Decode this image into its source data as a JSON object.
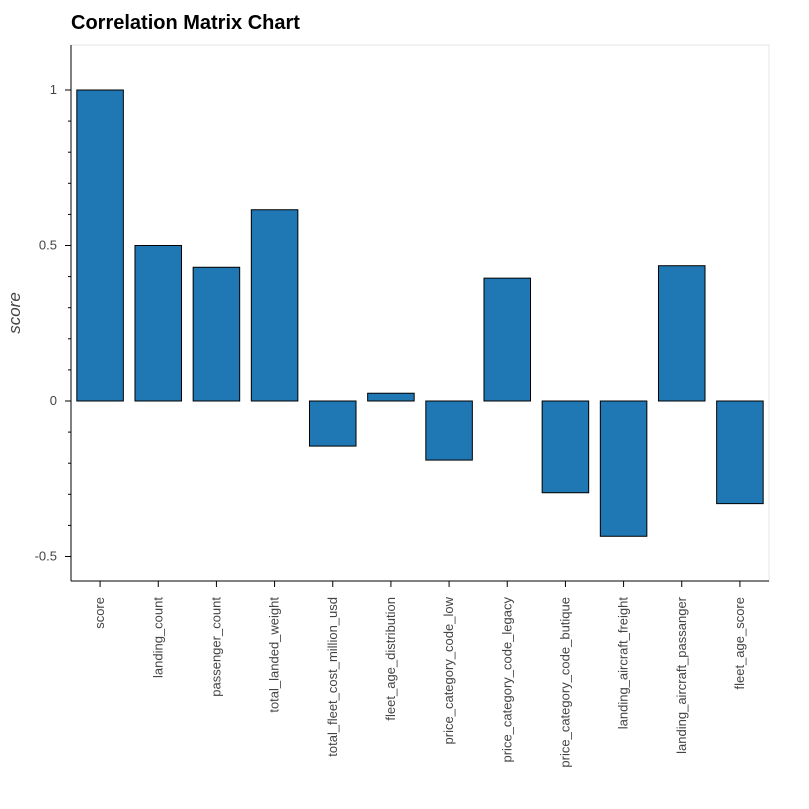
{
  "chart_data": {
    "type": "bar",
    "title": "Correlation Matrix Chart",
    "xlabel": "",
    "ylabel": "score",
    "categories": [
      "score",
      "landing_count",
      "passenger_count",
      "total_landed_weight",
      "total_fleet_cost_million_usd",
      "fleet_age_distribution",
      "price_category_code_low",
      "price_category_code_legacy",
      "price_category_code_butique",
      "landing_aircraft_freight",
      "landing_aircraft_passanger",
      "fleet_age_score"
    ],
    "values": [
      1.0,
      0.5,
      0.43,
      0.615,
      -0.145,
      0.025,
      -0.19,
      0.395,
      -0.295,
      -0.435,
      0.435,
      -0.33
    ],
    "ylim": [
      -0.575,
      1.14
    ],
    "yticks": [
      -0.5,
      0,
      0.5,
      1
    ],
    "ytick_labels": [
      "-0.5",
      "0",
      "0.5",
      "1"
    ],
    "grid": false,
    "legend": "none",
    "bar_color": "#1f77b4",
    "bar_edge_color": "#000000"
  }
}
